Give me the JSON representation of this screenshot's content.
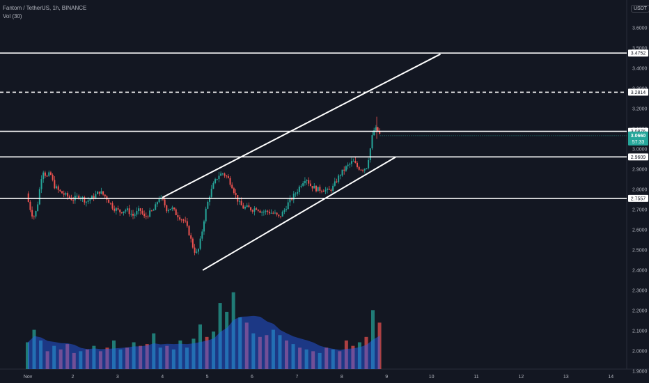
{
  "header": {
    "symbol_line": "Fantom / TetherUS, 1h, BINANCE",
    "indicator_line": "Vol (30)",
    "currency_button": "USDT"
  },
  "colors": {
    "background": "#131722",
    "up": "#26a69a",
    "down": "#ef5350",
    "line": "#ffffff",
    "volume_ma": "#2962ff",
    "axis_text": "#b2b5be",
    "price_label_bg": "#26a69a"
  },
  "chart_data": {
    "type": "candlestick",
    "symbol": "FTM/USDT",
    "interval": "1h",
    "x_tick_labels": [
      "Nov",
      "2",
      "3",
      "4",
      "5",
      "6",
      "7",
      "8",
      "9",
      "10",
      "11",
      "12",
      "13",
      "14"
    ],
    "y_tick_labels": [
      "3.6000",
      "3.5000",
      "3.4000",
      "3.3000",
      "3.2000",
      "3.1000",
      "3.0000",
      "2.9000",
      "2.8000",
      "2.7000",
      "2.6000",
      "2.5000",
      "2.4000",
      "2.3000",
      "2.2000",
      "2.1000",
      "2.0000",
      "1.9000"
    ],
    "y_range": [
      1.89,
      3.65
    ],
    "x_range_days": [
      1,
      14.5
    ],
    "horizontal_levels": [
      {
        "price": 3.4752,
        "label": "3.4752",
        "style": "solid"
      },
      {
        "price": 3.2814,
        "label": "3.2814",
        "style": "dashed"
      },
      {
        "price": 3.0876,
        "label": "3.0876",
        "style": "solid"
      },
      {
        "price": 2.9609,
        "label": "2.9609",
        "style": "solid"
      },
      {
        "price": 2.7557,
        "label": "2.7557",
        "style": "solid"
      }
    ],
    "last_price": {
      "price": 3.066,
      "label": "3.0660",
      "countdown": "57:33"
    },
    "channel": {
      "upper": [
        [
          4.0,
          2.76
        ],
        [
          10.2,
          3.47
        ]
      ],
      "lower": [
        [
          4.9,
          2.4
        ],
        [
          9.2,
          2.96
        ]
      ]
    },
    "price_path": [
      [
        0.97,
        2.78
      ],
      [
        1.03,
        2.72
      ],
      [
        1.12,
        2.66
      ],
      [
        1.2,
        2.7
      ],
      [
        1.28,
        2.83
      ],
      [
        1.33,
        2.9
      ],
      [
        1.42,
        2.86
      ],
      [
        1.5,
        2.88
      ],
      [
        1.58,
        2.82
      ],
      [
        1.7,
        2.79
      ],
      [
        1.85,
        2.77
      ],
      [
        2.0,
        2.75
      ],
      [
        2.15,
        2.77
      ],
      [
        2.3,
        2.74
      ],
      [
        2.45,
        2.76
      ],
      [
        2.6,
        2.79
      ],
      [
        2.75,
        2.76
      ],
      [
        2.9,
        2.71
      ],
      [
        3.05,
        2.69
      ],
      [
        3.2,
        2.7
      ],
      [
        3.35,
        2.67
      ],
      [
        3.5,
        2.7
      ],
      [
        3.6,
        2.66
      ],
      [
        3.7,
        2.68
      ],
      [
        3.82,
        2.7
      ],
      [
        3.92,
        2.76
      ],
      [
        4.02,
        2.74
      ],
      [
        4.1,
        2.7
      ],
      [
        4.2,
        2.71
      ],
      [
        4.3,
        2.68
      ],
      [
        4.4,
        2.66
      ],
      [
        4.5,
        2.64
      ],
      [
        4.6,
        2.58
      ],
      [
        4.7,
        2.5
      ],
      [
        4.78,
        2.48
      ],
      [
        4.86,
        2.56
      ],
      [
        4.95,
        2.68
      ],
      [
        5.05,
        2.77
      ],
      [
        5.15,
        2.83
      ],
      [
        5.25,
        2.87
      ],
      [
        5.35,
        2.88
      ],
      [
        5.45,
        2.86
      ],
      [
        5.55,
        2.82
      ],
      [
        5.65,
        2.76
      ],
      [
        5.72,
        2.73
      ],
      [
        5.8,
        2.71
      ],
      [
        5.9,
        2.71
      ],
      [
        6.0,
        2.7
      ],
      [
        6.1,
        2.71
      ],
      [
        6.2,
        2.69
      ],
      [
        6.35,
        2.69
      ],
      [
        6.5,
        2.68
      ],
      [
        6.6,
        2.66
      ],
      [
        6.7,
        2.69
      ],
      [
        6.8,
        2.73
      ],
      [
        6.9,
        2.76
      ],
      [
        7.0,
        2.79
      ],
      [
        7.1,
        2.83
      ],
      [
        7.2,
        2.86
      ],
      [
        7.3,
        2.82
      ],
      [
        7.45,
        2.8
      ],
      [
        7.6,
        2.8
      ],
      [
        7.7,
        2.79
      ],
      [
        7.8,
        2.81
      ],
      [
        7.95,
        2.87
      ],
      [
        8.1,
        2.91
      ],
      [
        8.25,
        2.94
      ],
      [
        8.35,
        2.91
      ],
      [
        8.45,
        2.9
      ],
      [
        8.55,
        2.91
      ],
      [
        8.62,
        2.98
      ],
      [
        8.7,
        3.09
      ],
      [
        8.78,
        3.1
      ],
      [
        8.85,
        3.07
      ]
    ],
    "volume": {
      "values": [
        1.5,
        2.2,
        1.6,
        1.0,
        1.3,
        1.1,
        1.4,
        0.9,
        1.0,
        1.1,
        1.3,
        1.0,
        1.2,
        1.6,
        1.1,
        1.2,
        1.5,
        1.3,
        1.4,
        2.0,
        1.2,
        1.3,
        1.1,
        1.6,
        1.2,
        1.7,
        2.5,
        1.8,
        2.1,
        3.7,
        3.2,
        4.3,
        2.9,
        2.6,
        2.0,
        1.8,
        1.9,
        2.2,
        1.9,
        1.6,
        1.4,
        1.2,
        1.1,
        1.0,
        0.9,
        1.2,
        1.1,
        1.0,
        1.6,
        1.3,
        1.5,
        1.8,
        3.3,
        2.6
      ],
      "range": [
        0,
        4.6
      ]
    }
  }
}
